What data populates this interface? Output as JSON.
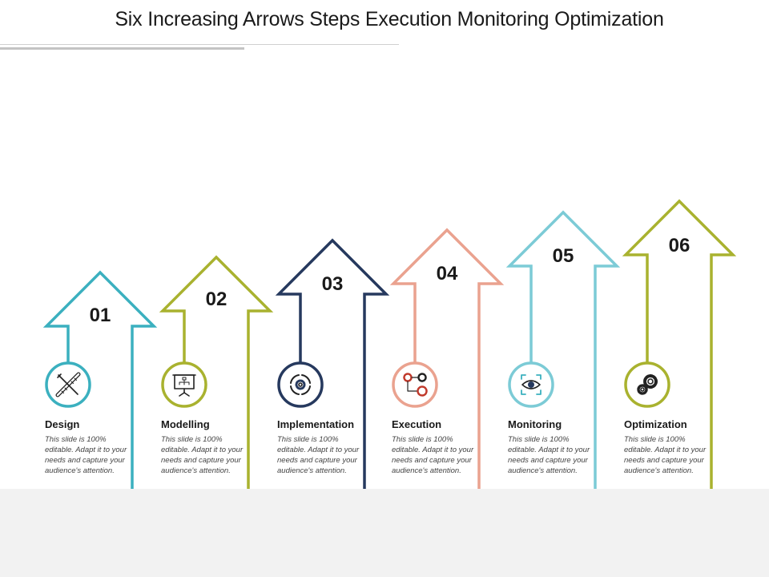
{
  "title": "Six Increasing Arrows Steps Execution Monitoring Optimization",
  "steps": [
    {
      "number": "01",
      "label": "Design",
      "description": "This slide is 100% editable. Adapt it to your needs and capture your audience's attention.",
      "color": "#3bb0bf",
      "icon": "ruler-pencil-icon"
    },
    {
      "number": "02",
      "label": "Modelling",
      "description": "This slide is 100% editable. Adapt it to your needs and capture your audience's attention.",
      "color": "#a9b22f",
      "icon": "presentation-board-icon"
    },
    {
      "number": "03",
      "label": "Implementation",
      "description": "This slide is 100% editable. Adapt it to your needs and capture your audience's attention.",
      "color": "#26395e",
      "icon": "cycle-gear-icon"
    },
    {
      "number": "04",
      "label": "Execution",
      "description": "This slide is 100% editable. Adapt it to your needs and capture your audience's attention.",
      "color": "#eaa28f",
      "icon": "process-gears-icon"
    },
    {
      "number": "05",
      "label": "Monitoring",
      "description": "This slide is 100% editable. Adapt it to your needs and capture your audience's attention.",
      "color": "#7ccbd6",
      "icon": "eye-focus-icon"
    },
    {
      "number": "06",
      "label": "Optimization",
      "description": "This slide is 100% editable. Adapt it to your needs and capture your audience's attention.",
      "color": "#a9b22f",
      "icon": "gears-icon"
    }
  ]
}
